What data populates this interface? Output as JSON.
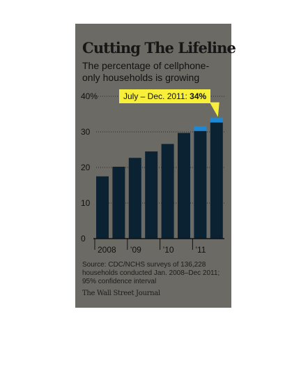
{
  "chart_data": {
    "type": "bar",
    "title": "Cutting The Lifeline",
    "subtitle": "The percentage of cellphone-only households is growing",
    "categories": [
      "2008 H1",
      "2008 H2",
      "2009 H1",
      "2009 H2",
      "2010 H1",
      "2010 H2",
      "2011 H1",
      "2011 H2"
    ],
    "values": [
      17.5,
      20.2,
      22.7,
      24.5,
      26.6,
      29.7,
      31.6,
      34
    ],
    "x_tick_labels": [
      "2008",
      "’09",
      "’10",
      "’11"
    ],
    "y_tick_labels": [
      "0",
      "10",
      "20",
      "30",
      "40%"
    ],
    "ylim": [
      0,
      40
    ],
    "grid": "dotted horizontal",
    "highlight": {
      "label": "July – Dec. 2011:",
      "value": "34%",
      "index": 7
    },
    "colors": {
      "bar": "#0b2233",
      "recent_bar": "#1e88d4",
      "callout": "#f7ef3a",
      "background": "#6b6a64"
    }
  },
  "source": "Source: CDC/NCHS surveys of 136,228 households conducted Jan. 2008–Dec 2011; 95% confidence interval",
  "publisher": "The Wall Street Journal"
}
